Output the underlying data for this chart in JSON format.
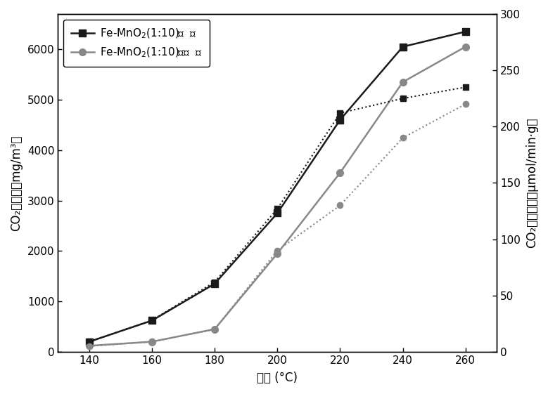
{
  "temperatures": [
    140,
    160,
    180,
    200,
    220,
    240,
    260
  ],
  "with_light_solid": [
    200,
    620,
    1350,
    2750,
    4600,
    6050,
    6350
  ],
  "no_light_solid": [
    120,
    200,
    450,
    1950,
    3550,
    5350,
    6050
  ],
  "with_light_dotted": [
    9,
    28,
    62,
    127,
    212,
    225,
    235
  ],
  "no_light_dotted": [
    5,
    9,
    20,
    90,
    130,
    190,
    220
  ],
  "xlim": [
    130,
    270
  ],
  "ylim_left": [
    0,
    6700
  ],
  "ylim_right": [
    0,
    300
  ],
  "yticks_left": [
    0,
    1000,
    2000,
    3000,
    4000,
    5000,
    6000
  ],
  "yticks_right": [
    0,
    50,
    100,
    150,
    200,
    250,
    300
  ],
  "xticks": [
    140,
    160,
    180,
    200,
    220,
    240,
    260
  ],
  "xlabel": "温度 (°C)",
  "ylabel_left": "CO₂生成量（mg/m³）",
  "ylabel_right": "CO₂生成速率（μmol/min·g）",
  "label_with_light": "Fe-MnO$_2$(1:10)加  光",
  "label_no_light": "Fe-MnO$_2$(1:10)不加  光",
  "color_with_light": "#1a1a1a",
  "color_no_light": "#888888",
  "bg_color": "#ffffff"
}
